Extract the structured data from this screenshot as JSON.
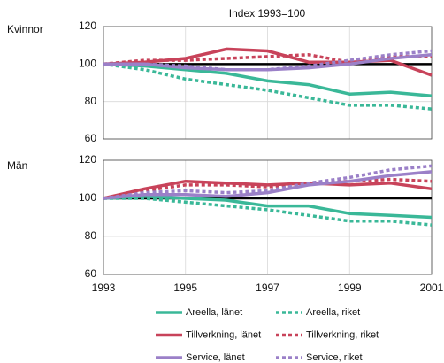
{
  "chart_data": [
    {
      "type": "line",
      "title": "Index 1993=100",
      "panel_label": "Kvinnor",
      "x": [
        1993,
        1994,
        1995,
        1996,
        1997,
        1998,
        1999,
        2000,
        2001
      ],
      "xlim": [
        1993,
        2001
      ],
      "xticks": [
        1993,
        1995,
        1997,
        1999,
        2001
      ],
      "ylim": [
        60,
        120
      ],
      "yticks": [
        60,
        80,
        100,
        120
      ],
      "reference": 100,
      "grid": true,
      "series": [
        {
          "name": "Areella, länet",
          "color": "#3ab898",
          "dashed": false,
          "values": [
            100,
            99,
            97,
            95,
            91,
            89,
            84,
            85,
            83
          ]
        },
        {
          "name": "Areella, riket",
          "color": "#3ab898",
          "dashed": true,
          "values": [
            100,
            97,
            92,
            89,
            86,
            82,
            78,
            78,
            76
          ]
        },
        {
          "name": "Tillverkning, länet",
          "color": "#c8435a",
          "dashed": false,
          "values": [
            100,
            101,
            103,
            108,
            107,
            101,
            101,
            102,
            94
          ]
        },
        {
          "name": "Tillverkning, riket",
          "color": "#c8435a",
          "dashed": true,
          "values": [
            100,
            102,
            102,
            103,
            104,
            105,
            101,
            104,
            104
          ]
        },
        {
          "name": "Service, länet",
          "color": "#9b80c8",
          "dashed": false,
          "values": [
            100,
            100,
            98,
            97,
            97,
            98,
            100,
            103,
            105
          ]
        },
        {
          "name": "Service, riket",
          "color": "#9b80c8",
          "dashed": true,
          "values": [
            100,
            100,
            99,
            97,
            97,
            99,
            102,
            105,
            107
          ]
        }
      ]
    },
    {
      "type": "line",
      "panel_label": "Män",
      "x": [
        1993,
        1994,
        1995,
        1996,
        1997,
        1998,
        1999,
        2000,
        2001
      ],
      "xlim": [
        1993,
        2001
      ],
      "xticks": [
        1993,
        1995,
        1997,
        1999,
        2001
      ],
      "ylim": [
        60,
        120
      ],
      "yticks": [
        60,
        80,
        100,
        120
      ],
      "reference": 100,
      "grid": true,
      "series": [
        {
          "name": "Areella, länet",
          "color": "#3ab898",
          "dashed": false,
          "values": [
            100,
            101,
            100,
            99,
            96,
            96,
            92,
            91,
            90
          ]
        },
        {
          "name": "Areella, riket",
          "color": "#3ab898",
          "dashed": true,
          "values": [
            100,
            100,
            98,
            96,
            94,
            91,
            88,
            88,
            86
          ]
        },
        {
          "name": "Tillverkning, länet",
          "color": "#c8435a",
          "dashed": false,
          "values": [
            100,
            105,
            109,
            108,
            107,
            108,
            107,
            108,
            105
          ]
        },
        {
          "name": "Tillverkning, riket",
          "color": "#c8435a",
          "dashed": true,
          "values": [
            100,
            104,
            107,
            107,
            106,
            108,
            109,
            110,
            109
          ]
        },
        {
          "name": "Service, länet",
          "color": "#9b80c8",
          "dashed": false,
          "values": [
            100,
            102,
            102,
            101,
            103,
            107,
            109,
            112,
            114
          ]
        },
        {
          "name": "Service, riket",
          "color": "#9b80c8",
          "dashed": true,
          "values": [
            100,
            103,
            104,
            103,
            104,
            108,
            111,
            115,
            117
          ]
        }
      ]
    }
  ]
}
